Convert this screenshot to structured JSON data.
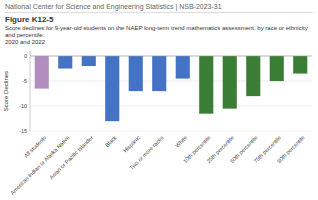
{
  "chart_data": {
    "type": "bar",
    "header": "National Center for Science and Engineering Statistics  |  NSB-2023-31",
    "title": "Figure K12-5",
    "subtitle": [
      "Score declines for 9-year-old students on the NAEP long-term trend mathematics assessment, by race or ethnicity and percentile:",
      "2020 and 2022"
    ],
    "ylabel": "Score Declines",
    "categories": [
      "All students",
      "American Indian or Alaska Native",
      "Asian or Pacific Islander",
      "Black",
      "Hispanic",
      "Two or more races",
      "White",
      "10th percentile",
      "25th percentile",
      "50th percentile",
      "75th percentile",
      "90th percentile"
    ],
    "values": [
      -6.5,
      -2.5,
      -2.0,
      -13.0,
      -7.0,
      -7.0,
      -4.5,
      -11.5,
      -10.5,
      -8.0,
      -5.0,
      -3.5
    ],
    "colors": [
      "#b08fbe",
      "#4472c4",
      "#4472c4",
      "#4472c4",
      "#4472c4",
      "#4472c4",
      "#4472c4",
      "#3a7d35",
      "#3a7d35",
      "#3a7d35",
      "#3a7d35",
      "#3a7d35"
    ],
    "ylim": [
      -15,
      1
    ],
    "yticks": [
      0,
      -5,
      -10,
      -15
    ],
    "grid": true
  }
}
